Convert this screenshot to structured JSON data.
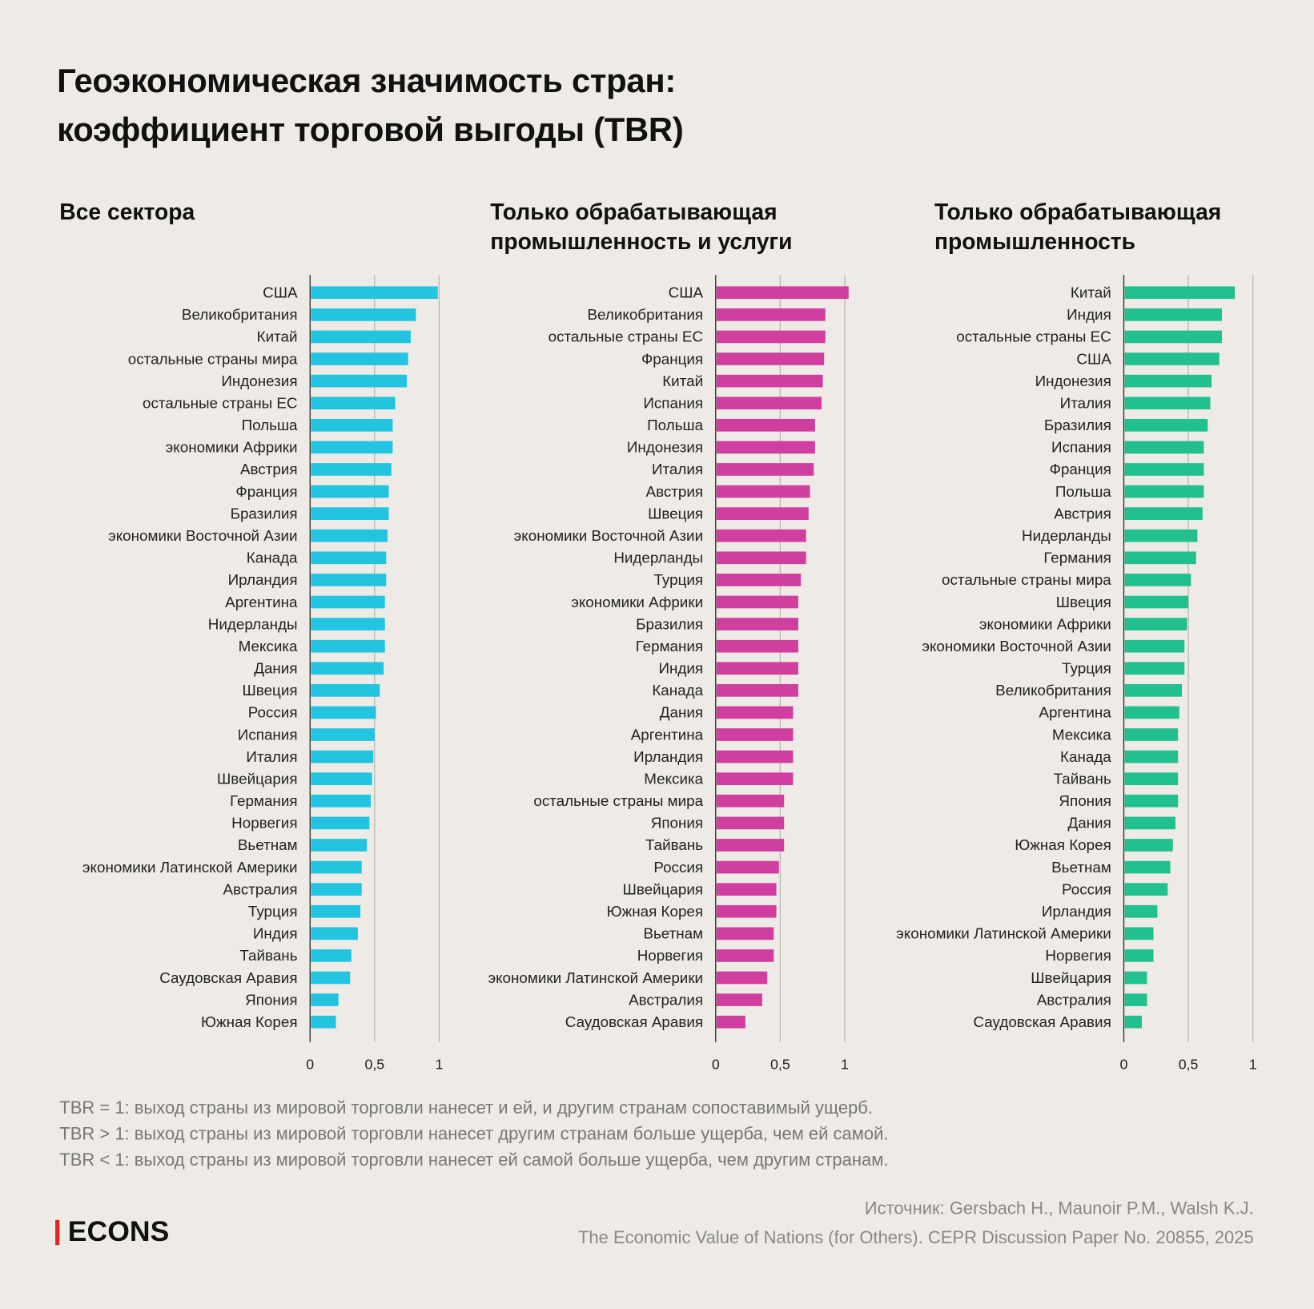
{
  "title_lines": [
    "Геоэкономическая значимость стран:",
    "коэффициент торговой выгоды (TBR)"
  ],
  "colors": {
    "background": "#eeebe6",
    "panel1": "#22c4e0",
    "panel2": "#d03ea0",
    "panel3": "#22c08f"
  },
  "chart_data": [
    {
      "type": "bar",
      "orientation": "horizontal",
      "title": "Все сектора",
      "xlim": [
        0,
        1
      ],
      "xticks": [
        0,
        0.5,
        1
      ],
      "xtick_labels": [
        "0",
        "0,5",
        "1"
      ],
      "grid": true,
      "categories": [
        "США",
        "Великобритания",
        "Китай",
        "остальные страны мира",
        "Индонезия",
        "остальные страны ЕС",
        "Польша",
        "экономики Африки",
        "Австрия",
        "Франция",
        "Бразилия",
        "экономики Восточной Азии",
        "Канада",
        "Ирландия",
        "Аргентина",
        "Нидерланды",
        "Мексика",
        "Дания",
        "Швеция",
        "Россия",
        "Испания",
        "Италия",
        "Швейцария",
        "Германия",
        "Норвегия",
        "Вьетнам",
        "экономики Латинской Америки",
        "Австралия",
        "Турция",
        "Индия",
        "Тайвань",
        "Саудовская Аравия",
        "Япония",
        "Южная Корея"
      ],
      "values": [
        0.99,
        0.82,
        0.78,
        0.76,
        0.75,
        0.66,
        0.64,
        0.64,
        0.63,
        0.61,
        0.61,
        0.6,
        0.59,
        0.59,
        0.58,
        0.58,
        0.58,
        0.57,
        0.54,
        0.51,
        0.5,
        0.49,
        0.48,
        0.47,
        0.46,
        0.44,
        0.4,
        0.4,
        0.39,
        0.37,
        0.32,
        0.31,
        0.22,
        0.2
      ]
    },
    {
      "type": "bar",
      "orientation": "horizontal",
      "title": "Только обрабатывающая промышленность и услуги",
      "xlim": [
        0,
        1
      ],
      "xticks": [
        0,
        0.5,
        1
      ],
      "xtick_labels": [
        "0",
        "0,5",
        "1"
      ],
      "grid": true,
      "categories": [
        "США",
        "Великобритания",
        "остальные страны ЕС",
        "Франция",
        "Китай",
        "Испания",
        "Польша",
        "Индонезия",
        "Италия",
        "Австрия",
        "Швеция",
        "экономики Восточной Азии",
        "Нидерланды",
        "Турция",
        "экономики Африки",
        "Бразилия",
        "Германия",
        "Индия",
        "Канада",
        "Дания",
        "Аргентина",
        "Ирландия",
        "Мексика",
        "остальные страны мира",
        "Япония",
        "Тайвань",
        "Россия",
        "Швейцария",
        "Южная Корея",
        "Вьетнам",
        "Норвегия",
        "экономики Латинской Америки",
        "Австралия",
        "Саудовская Аравия"
      ],
      "values": [
        1.03,
        0.85,
        0.85,
        0.84,
        0.83,
        0.82,
        0.77,
        0.77,
        0.76,
        0.73,
        0.72,
        0.7,
        0.7,
        0.66,
        0.64,
        0.64,
        0.64,
        0.64,
        0.64,
        0.6,
        0.6,
        0.6,
        0.6,
        0.53,
        0.53,
        0.53,
        0.49,
        0.47,
        0.47,
        0.45,
        0.45,
        0.4,
        0.36,
        0.23
      ]
    },
    {
      "type": "bar",
      "orientation": "horizontal",
      "title": "Только обрабатывающая промышленность",
      "xlim": [
        0,
        1
      ],
      "xticks": [
        0,
        0.5,
        1
      ],
      "xtick_labels": [
        "0",
        "0,5",
        "1"
      ],
      "grid": true,
      "categories": [
        "Китай",
        "Индия",
        "остальные страны ЕС",
        "США",
        "Индонезия",
        "Италия",
        "Бразилия",
        "Испания",
        "Франция",
        "Польша",
        "Австрия",
        "Нидерланды",
        "Германия",
        "остальные страны мира",
        "Швеция",
        "экономики Африки",
        "экономики Восточной Азии",
        "Турция",
        "Великобритания",
        "Аргентина",
        "Мексика",
        "Канада",
        "Тайвань",
        "Япония",
        "Дания",
        "Южная Корея",
        "Вьетнам",
        "Россия",
        "Ирландия",
        "экономики Латинской Америки",
        "Норвегия",
        "Швейцария",
        "Австралия",
        "Саудовская Аравия"
      ],
      "values": [
        0.86,
        0.76,
        0.76,
        0.74,
        0.68,
        0.67,
        0.65,
        0.62,
        0.62,
        0.62,
        0.61,
        0.57,
        0.56,
        0.52,
        0.5,
        0.49,
        0.47,
        0.47,
        0.45,
        0.43,
        0.42,
        0.42,
        0.42,
        0.42,
        0.4,
        0.38,
        0.36,
        0.34,
        0.26,
        0.23,
        0.23,
        0.18,
        0.18,
        0.14
      ]
    }
  ],
  "panel_title_lines": [
    [
      "Все сектора"
    ],
    [
      "Только обрабатывающая",
      "промышленность и услуги"
    ],
    [
      "Только обрабатывающая",
      "промышленность"
    ]
  ],
  "notes": [
    "TBR = 1: выход страны из мировой торговли нанесет и ей, и другим странам сопоставимый ущерб.",
    "TBR > 1: выход страны из мировой торговли нанесет другим странам больше ущерба, чем ей самой.",
    "TBR < 1: выход страны из мировой торговли нанесет ей самой больше ущерба, чем другим странам."
  ],
  "source": [
    "Источник: Gersbach H., Maunoir P.M., Walsh K.J.",
    "The Economic Value of Nations (for Others). CEPR Discussion Paper No. 20855, 2025"
  ],
  "logo": "ECONS"
}
